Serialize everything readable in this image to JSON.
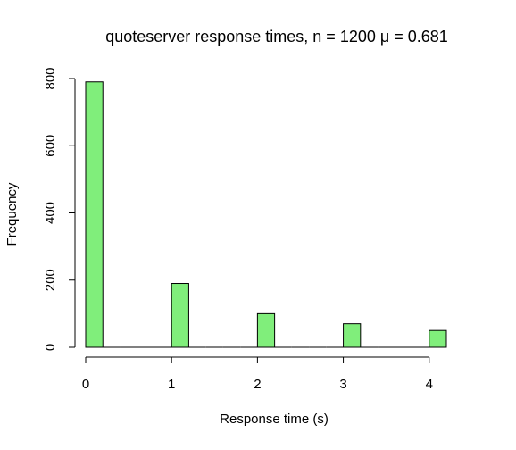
{
  "chart_data": {
    "type": "bar",
    "title": "quoteserver response times, n = 1200 μ = 0.681",
    "xlabel": "Response time (s)",
    "ylabel": "Frequency",
    "bar_color": "#80ee7b",
    "bar_edge_color": "#000000",
    "bin_width": 0.2,
    "bins": [
      {
        "x0": 0.0,
        "x1": 0.2,
        "count": 790
      },
      {
        "x0": 0.2,
        "x1": 0.4,
        "count": 0
      },
      {
        "x0": 0.4,
        "x1": 0.6,
        "count": 0
      },
      {
        "x0": 0.6,
        "x1": 0.8,
        "count": 0
      },
      {
        "x0": 0.8,
        "x1": 1.0,
        "count": 0
      },
      {
        "x0": 1.0,
        "x1": 1.2,
        "count": 190
      },
      {
        "x0": 1.2,
        "x1": 1.4,
        "count": 0
      },
      {
        "x0": 1.4,
        "x1": 1.6,
        "count": 0
      },
      {
        "x0": 1.6,
        "x1": 1.8,
        "count": 0
      },
      {
        "x0": 1.8,
        "x1": 2.0,
        "count": 0
      },
      {
        "x0": 2.0,
        "x1": 2.2,
        "count": 100
      },
      {
        "x0": 2.2,
        "x1": 2.4,
        "count": 0
      },
      {
        "x0": 2.4,
        "x1": 2.6,
        "count": 0
      },
      {
        "x0": 2.6,
        "x1": 2.8,
        "count": 0
      },
      {
        "x0": 2.8,
        "x1": 3.0,
        "count": 0
      },
      {
        "x0": 3.0,
        "x1": 3.2,
        "count": 70
      },
      {
        "x0": 3.2,
        "x1": 3.4,
        "count": 0
      },
      {
        "x0": 3.4,
        "x1": 3.6,
        "count": 0
      },
      {
        "x0": 3.6,
        "x1": 3.8,
        "count": 0
      },
      {
        "x0": 3.8,
        "x1": 4.0,
        "count": 0
      },
      {
        "x0": 4.0,
        "x1": 4.2,
        "count": 50
      }
    ],
    "xlim": [
      0,
      4.2
    ],
    "ylim": [
      0,
      800
    ],
    "x_ticks": [
      0,
      1,
      2,
      3,
      4
    ],
    "y_ticks": [
      0,
      200,
      400,
      600,
      800
    ],
    "x_tick_labels": [
      "0",
      "1",
      "2",
      "3",
      "4"
    ],
    "y_tick_labels": [
      "0",
      "200",
      "400",
      "600",
      "800"
    ],
    "grid": false,
    "legend": "none"
  }
}
